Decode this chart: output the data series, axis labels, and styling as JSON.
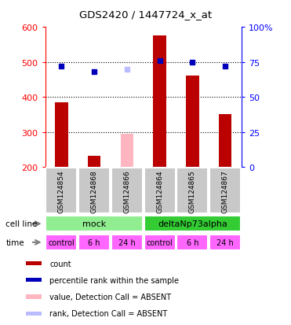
{
  "title": "GDS2420 / 1447724_x_at",
  "samples": [
    "GSM124854",
    "GSM124868",
    "GSM124866",
    "GSM124864",
    "GSM124865",
    "GSM124867"
  ],
  "count_values": [
    385,
    232,
    null,
    575,
    460,
    350
  ],
  "count_absent_values": [
    null,
    null,
    295,
    null,
    null,
    null
  ],
  "rank_values": [
    72,
    68,
    null,
    76,
    75,
    72
  ],
  "rank_absent_values": [
    null,
    null,
    70,
    null,
    null,
    null
  ],
  "ylim_left": [
    200,
    600
  ],
  "ylim_right": [
    0,
    100
  ],
  "y_left_ticks": [
    200,
    300,
    400,
    500,
    600
  ],
  "y_right_ticks": [
    0,
    25,
    50,
    75,
    100
  ],
  "cell_line_groups": [
    {
      "label": "mock",
      "span": [
        0,
        3
      ],
      "color": "#90EE90"
    },
    {
      "label": "deltaNp73alpha",
      "span": [
        3,
        6
      ],
      "color": "#33CC33"
    }
  ],
  "time_labels": [
    "control",
    "6 h",
    "24 h",
    "control",
    "6 h",
    "24 h"
  ],
  "time_color": "#FF66FF",
  "sample_box_color": "#C8C8C8",
  "count_color": "#BB0000",
  "count_absent_color": "#FFB6C1",
  "rank_color": "#0000BB",
  "rank_absent_color": "#BBBBFF",
  "legend_items": [
    {
      "label": "count",
      "color": "#BB0000"
    },
    {
      "label": "percentile rank within the sample",
      "color": "#0000BB"
    },
    {
      "label": "value, Detection Call = ABSENT",
      "color": "#FFB6C1"
    },
    {
      "label": "rank, Detection Call = ABSENT",
      "color": "#BBBBFF"
    }
  ],
  "background_color": "#FFFFFF",
  "cell_line_label": "cell line",
  "time_label": "time",
  "bar_width": 0.4
}
